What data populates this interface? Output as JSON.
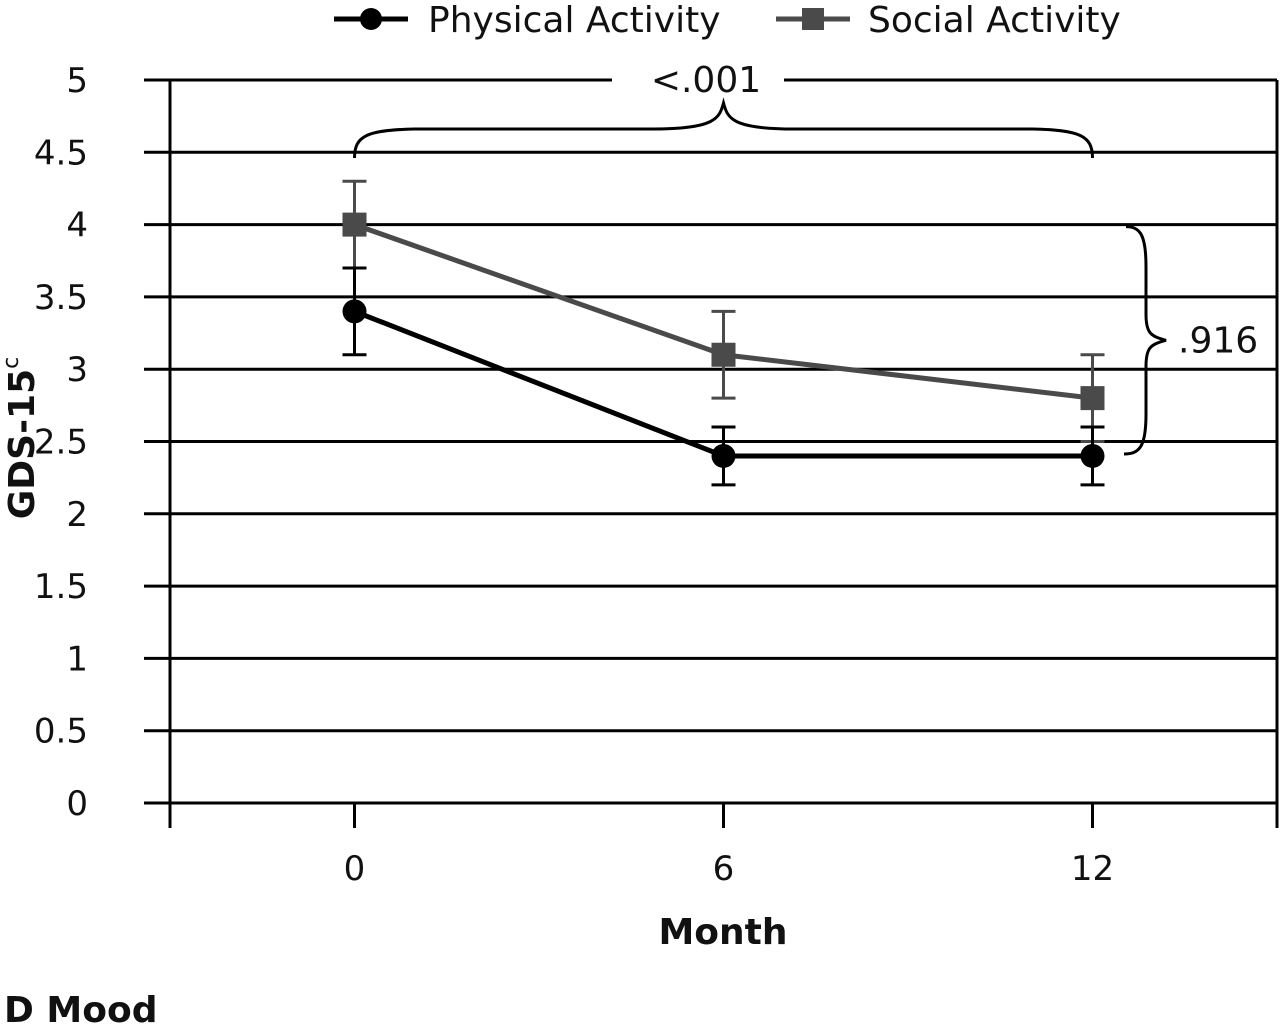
{
  "chart_data": {
    "type": "line",
    "panel_label": "D Mood",
    "xlabel": "Month",
    "ylabel": "GDS-15",
    "ylabel_superscript": "c",
    "x": [
      0,
      6,
      12
    ],
    "x_tick_labels": [
      "0",
      "6",
      "12"
    ],
    "xlim": [
      -3,
      15
    ],
    "ylim": [
      0,
      5
    ],
    "y_ticks": [
      0,
      0.5,
      1,
      1.5,
      2,
      2.5,
      3,
      3.5,
      4,
      4.5,
      5
    ],
    "y_tick_labels": [
      "0",
      "0.5",
      "1",
      "1.5",
      "2",
      "2.5",
      "3",
      "3.5",
      "4",
      "4.5",
      "5"
    ],
    "grid": true,
    "legend_position": "top",
    "series": [
      {
        "name": "Physical Activity",
        "marker": "circle",
        "color": "#000000",
        "values": [
          3.4,
          2.4,
          2.4
        ],
        "error_low": [
          3.1,
          2.2,
          2.2
        ],
        "error_high": [
          3.7,
          2.6,
          2.6
        ]
      },
      {
        "name": "Social Activity",
        "marker": "square",
        "color": "#4a4a4a",
        "values": [
          4.0,
          3.1,
          2.8
        ],
        "error_low": [
          3.7,
          2.8,
          2.5
        ],
        "error_high": [
          4.3,
          3.4,
          3.1
        ]
      }
    ],
    "annotations": [
      {
        "text": "<.001",
        "type": "time-effect-brace",
        "from_x": 0,
        "to_x": 12
      },
      {
        "text": ".916",
        "type": "group-effect-brace",
        "from_y": 2.4,
        "to_y": 4.0
      }
    ]
  }
}
